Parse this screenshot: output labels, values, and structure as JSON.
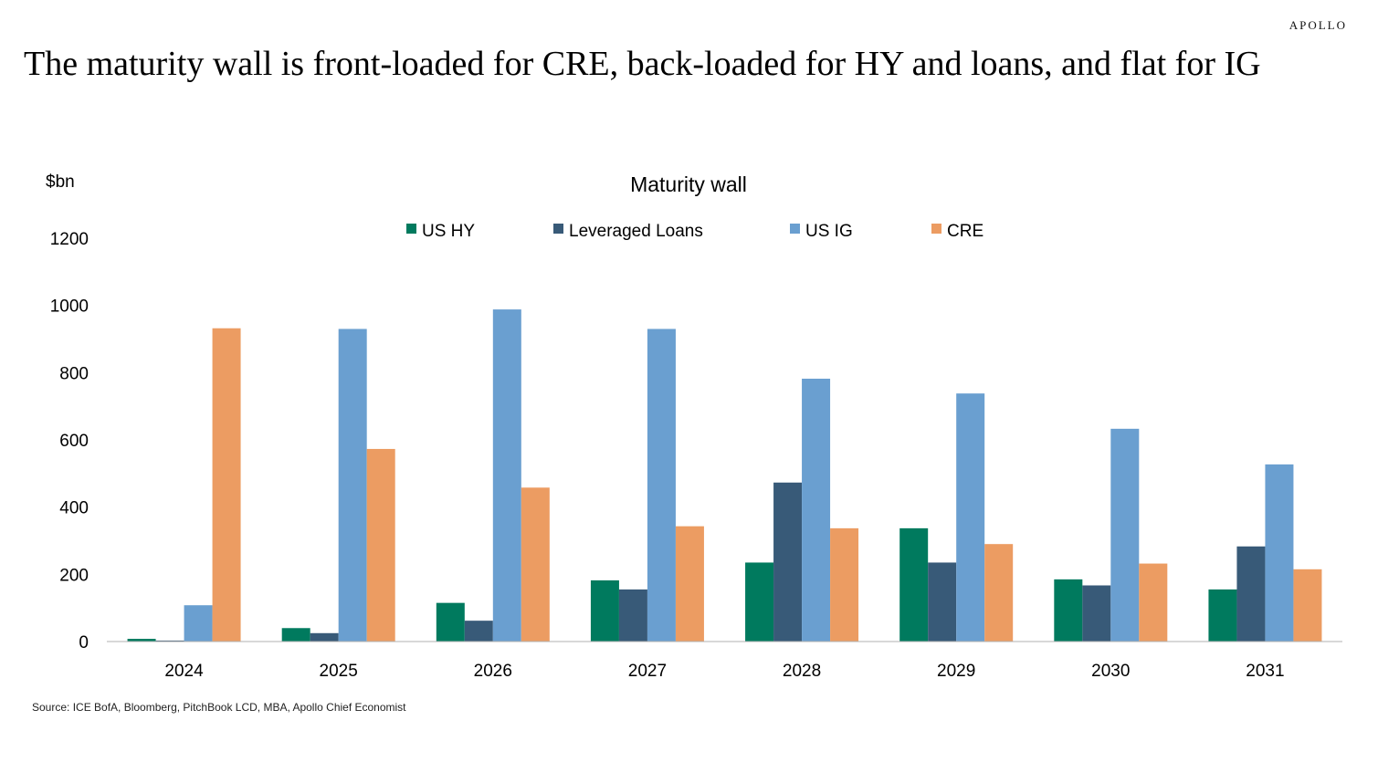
{
  "brand": "APOLLO",
  "headline": "The maturity wall is front-loaded for CRE, back-loaded for HY and loans, and flat for IG",
  "source": "Source: ICE BofA, Bloomberg, PitchBook LCD, MBA, Apollo Chief Economist",
  "chart_data": {
    "type": "bar",
    "title": "Maturity wall",
    "ylabel": "$bn",
    "xlabel": "",
    "ylim": [
      0,
      1200
    ],
    "yticks": [
      0,
      200,
      400,
      600,
      800,
      1000,
      1200
    ],
    "grid": false,
    "legend": "top",
    "categories": [
      "2024",
      "2025",
      "2026",
      "2027",
      "2028",
      "2029",
      "2030",
      "2031"
    ],
    "series": [
      {
        "name": "US HY",
        "color": "#007a5e",
        "values": [
          8,
          40,
          115,
          182,
          235,
          337,
          185,
          155
        ]
      },
      {
        "name": "Leveraged Loans",
        "color": "#385a78",
        "values": [
          3,
          25,
          62,
          155,
          473,
          235,
          167,
          283
        ]
      },
      {
        "name": "US IG",
        "color": "#6a9fd0",
        "values": [
          108,
          930,
          988,
          930,
          782,
          738,
          633,
          527
        ]
      },
      {
        "name": "CRE",
        "color": "#ec9c62",
        "values": [
          932,
          573,
          458,
          343,
          337,
          290,
          232,
          215
        ]
      }
    ]
  }
}
